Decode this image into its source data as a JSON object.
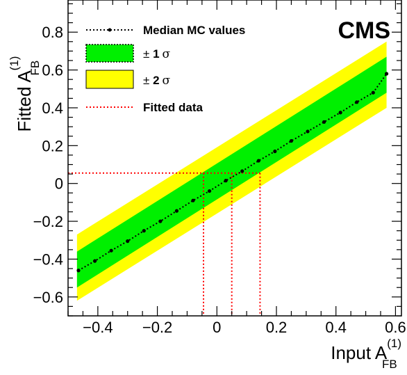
{
  "chart_data": {
    "type": "line",
    "experiment_label": "CMS",
    "xlabel": {
      "base": "Input A",
      "sub": "FB",
      "sup": "(1)"
    },
    "ylabel": {
      "base": "Fitted A",
      "sub": "FB",
      "sup": "(1)"
    },
    "xlim": [
      -0.5,
      0.62
    ],
    "ylim": [
      -0.7,
      0.97
    ],
    "xticks": [
      "−0.4",
      "−0.2",
      "0",
      "0.2",
      "0.4",
      "0.6"
    ],
    "xtick_values": [
      -0.4,
      -0.2,
      0,
      0.2,
      0.4,
      0.6
    ],
    "yticks": [
      "−0.6",
      "−0.4",
      "−0.2",
      "0",
      "0.2",
      "0.4",
      "0.6",
      "0.8"
    ],
    "ytick_values": [
      -0.6,
      -0.4,
      -0.2,
      0,
      0.2,
      0.4,
      0.6,
      0.8
    ],
    "legend": {
      "median": "Median MC values",
      "sigma1": {
        "prefix": "± ",
        "num": "1",
        "sym": "σ"
      },
      "sigma2": {
        "prefix": "± ",
        "num": "2",
        "sym": "σ"
      },
      "fitted": "Fitted data"
    },
    "series": [
      {
        "name": "Median MC values",
        "x": [
          -0.465,
          -0.41,
          -0.355,
          -0.3,
          -0.245,
          -0.19,
          -0.135,
          -0.08,
          -0.025,
          0.03,
          0.085,
          0.14,
          0.195,
          0.25,
          0.305,
          0.36,
          0.415,
          0.47,
          0.525,
          0.57
        ],
        "y": [
          -0.46,
          -0.41,
          -0.355,
          -0.305,
          -0.25,
          -0.2,
          -0.145,
          -0.09,
          -0.04,
          0.015,
          0.065,
          0.12,
          0.17,
          0.225,
          0.275,
          0.325,
          0.375,
          0.43,
          0.48,
          0.58
        ]
      }
    ],
    "bands": {
      "x_range": [
        -0.47,
        0.57
      ],
      "sigma1_low": [
        -0.55,
        0.48
      ],
      "sigma1_high": [
        -0.36,
        0.67
      ],
      "sigma2_low": [
        -0.62,
        0.4
      ],
      "sigma2_high": [
        -0.27,
        0.75
      ]
    },
    "fitted_data": {
      "y": 0.055,
      "x_low": -0.045,
      "x_central": 0.05,
      "x_high": 0.145
    },
    "colors": {
      "sigma1": "#00f000",
      "sigma2": "#ffff00",
      "median": "#000000",
      "fitted": "#ff0000"
    },
    "grid": false,
    "legend_position": "top-left"
  }
}
